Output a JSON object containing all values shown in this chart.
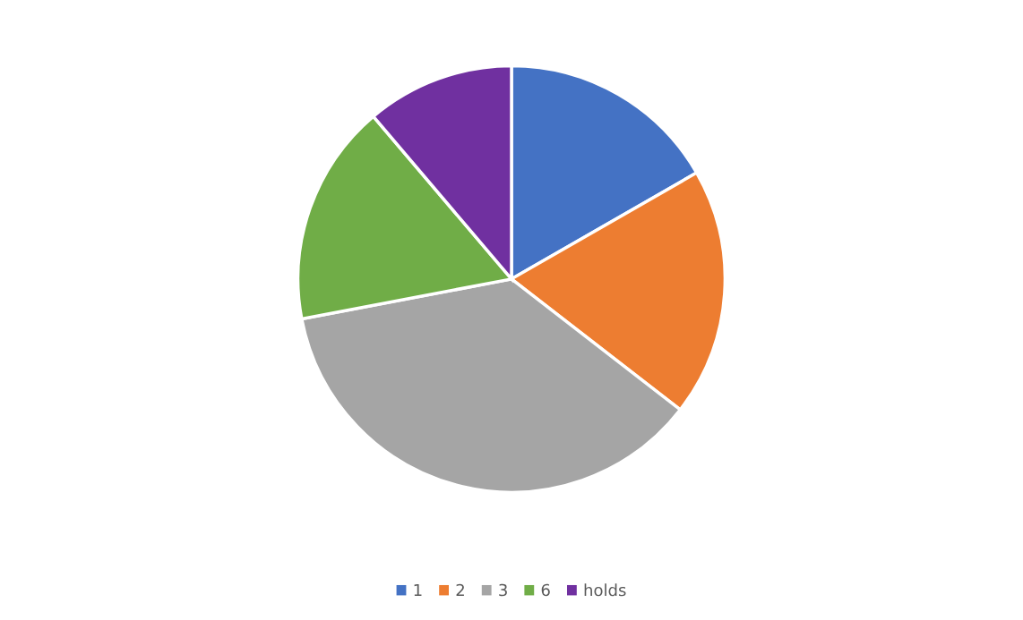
{
  "chart_data": {
    "type": "pie",
    "categories": [
      "1",
      "2",
      "3",
      "6",
      "holds"
    ],
    "values": [
      16.7,
      18.8,
      36.5,
      16.8,
      11.2
    ],
    "colors": [
      "#4472c4",
      "#ed7d31",
      "#a5a5a5",
      "#70ad47",
      "#7030a0"
    ],
    "legend": "bottom"
  }
}
